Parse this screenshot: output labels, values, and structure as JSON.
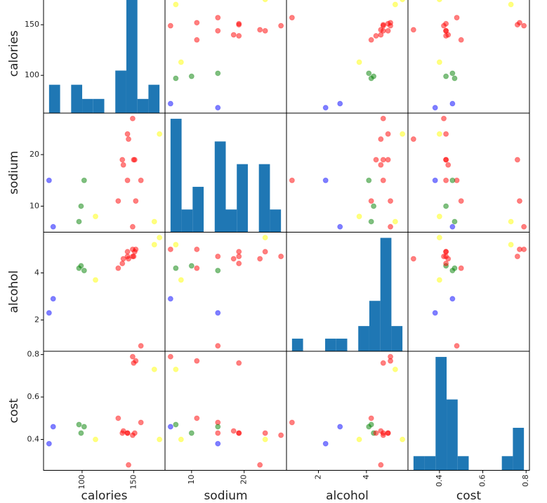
{
  "chart_data": {
    "type": "scatter_matrix",
    "variables": [
      {
        "name": "calories",
        "values": [
          144,
          151,
          157,
          170,
          152,
          145,
          175,
          149,
          99,
          113,
          140,
          102,
          135,
          150,
          149,
          68,
          139,
          144,
          72,
          97
        ],
        "lim": [
          62.65,
          180.35
        ],
        "ticks": [
          100,
          150
        ]
      },
      {
        "name": "sodium",
        "values": [
          15,
          19,
          15,
          7,
          11,
          23,
          24,
          27,
          10,
          8,
          18,
          15,
          11,
          19,
          6,
          15,
          19,
          24,
          6,
          7
        ],
        "lim": [
          4.95,
          28.05
        ],
        "ticks": [
          10,
          20
        ]
      },
      {
        "name": "alcohol",
        "values": [
          4.7,
          4.9,
          0.9,
          5.2,
          5.0,
          4.6,
          5.5,
          4.7,
          4.3,
          3.7,
          4.6,
          4.1,
          4.2,
          4.7,
          5.0,
          2.3,
          4.4,
          4.9,
          2.9,
          4.2
        ],
        "lim": [
          0.67,
          5.73
        ],
        "ticks": [
          2,
          4
        ]
      },
      {
        "name": "cost",
        "values": [
          0.43,
          0.43,
          0.48,
          0.73,
          0.77,
          0.28,
          0.4,
          0.42,
          0.43,
          0.4,
          0.44,
          0.46,
          0.5,
          0.76,
          0.79,
          0.38,
          0.43,
          0.43,
          0.46,
          0.47
        ],
        "lim": [
          0.2545,
          0.8155
        ],
        "ticks": [
          0.4,
          0.6,
          0.8
        ]
      }
    ],
    "point_colors": [
      "#ff0000",
      "#ff0000",
      "#ff0000",
      "#ffff00",
      "#ff0000",
      "#ff0000",
      "#ffff00",
      "#ff0000",
      "#008000",
      "#ffff00",
      "#ff0000",
      "#008000",
      "#ff0000",
      "#ff0000",
      "#ff0000",
      "#0000ff",
      "#ff0000",
      "#ff0000",
      "#0000ff",
      "#008000"
    ],
    "histograms": [
      {
        "bins": [
          68,
          78.7,
          89.4,
          100.1,
          110.8,
          121.5,
          132.2,
          142.9,
          153.6,
          164.3,
          175
        ],
        "counts": [
          2,
          0,
          2,
          1,
          1,
          0,
          3,
          8,
          1,
          2
        ]
      },
      {
        "bins": [
          6,
          8.1,
          10.2,
          12.3,
          14.4,
          16.5,
          18.6,
          20.7,
          22.8,
          24.9,
          27
        ],
        "counts": [
          5,
          1,
          2,
          0,
          4,
          1,
          3,
          0,
          3,
          1
        ]
      },
      {
        "bins": [
          0.9,
          1.36,
          1.82,
          2.28,
          2.74,
          3.2,
          3.66,
          4.12,
          4.58,
          5.04,
          5.5
        ],
        "counts": [
          1,
          0,
          0,
          1,
          1,
          0,
          2,
          4,
          9,
          2
        ]
      },
      {
        "bins": [
          0.28,
          0.331,
          0.382,
          0.433,
          0.484,
          0.535,
          0.586,
          0.637,
          0.688,
          0.739,
          0.79
        ],
        "counts": [
          1,
          1,
          8,
          5,
          1,
          0,
          0,
          0,
          1,
          3
        ]
      }
    ],
    "hist_color": "#1f77b4"
  }
}
